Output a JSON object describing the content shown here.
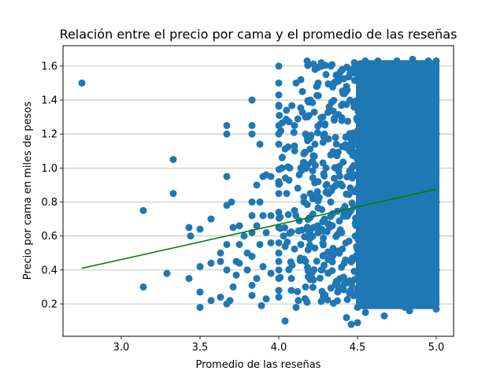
{
  "chart_data": {
    "type": "scatter",
    "title": "Relación entre el precio por cama y el promedio de las reseñas",
    "xlabel": "Promedio de las reseñas",
    "ylabel": "Precio por cama en miles de pesos",
    "xlim": [
      2.63,
      5.11
    ],
    "ylim": [
      0.01,
      1.72
    ],
    "xticks": [
      "3.0",
      "3.5",
      "4.0",
      "4.5",
      "5.0"
    ],
    "yticks": [
      "0.2",
      "0.4",
      "0.6",
      "0.8",
      "1.0",
      "1.2",
      "1.4",
      "1.6"
    ],
    "grid": "horizontal",
    "colors": {
      "points": "#1f77b4",
      "trendline": "#008000",
      "grid": "#b0b0b0"
    },
    "series": [
      {
        "values": [
          [
            2.75,
            1.5
          ],
          [
            3.14,
            0.75
          ],
          [
            3.14,
            0.3
          ],
          [
            3.29,
            0.38
          ],
          [
            3.33,
            1.05
          ],
          [
            3.33,
            0.85
          ],
          [
            3.43,
            0.65
          ],
          [
            3.43,
            0.35
          ],
          [
            3.44,
            0.6
          ],
          [
            3.5,
            0.64
          ],
          [
            3.5,
            0.42
          ],
          [
            3.5,
            0.27
          ],
          [
            3.5,
            0.18
          ],
          [
            3.57,
            0.7
          ],
          [
            3.57,
            0.44
          ],
          [
            3.57,
            0.22
          ],
          [
            3.63,
            0.5
          ],
          [
            3.63,
            0.45
          ],
          [
            3.63,
            0.24
          ],
          [
            3.67,
            1.25
          ],
          [
            3.67,
            1.2
          ],
          [
            3.67,
            0.95
          ],
          [
            3.67,
            0.78
          ],
          [
            3.67,
            0.55
          ],
          [
            3.67,
            0.4
          ],
          [
            3.67,
            0.2
          ],
          [
            3.69,
            0.22
          ],
          [
            3.7,
            0.8
          ],
          [
            3.71,
            0.65
          ],
          [
            3.71,
            0.3
          ],
          [
            3.73,
            0.45
          ],
          [
            3.73,
            0.37
          ],
          [
            3.75,
            0.66
          ],
          [
            3.75,
            0.55
          ],
          [
            3.75,
            0.44
          ],
          [
            3.78,
            0.6
          ],
          [
            3.8,
            0.5
          ],
          [
            3.8,
            0.4
          ],
          [
            3.83,
            1.4
          ],
          [
            3.83,
            1.25
          ],
          [
            3.83,
            1.2
          ],
          [
            3.83,
            0.8
          ],
          [
            3.83,
            0.72
          ],
          [
            3.83,
            0.62
          ],
          [
            3.83,
            0.48
          ],
          [
            3.83,
            0.31
          ],
          [
            3.83,
            0.25
          ],
          [
            3.86,
            0.9
          ],
          [
            3.86,
            0.66
          ],
          [
            3.86,
            0.35
          ],
          [
            3.88,
            1.14
          ],
          [
            3.88,
            0.8
          ],
          [
            3.88,
            0.55
          ],
          [
            3.89,
            0.19
          ],
          [
            3.9,
            0.95
          ],
          [
            3.9,
            0.72
          ],
          [
            3.9,
            0.42
          ],
          [
            3.92,
            0.96
          ],
          [
            3.92,
            0.62
          ],
          [
            3.92,
            0.23
          ],
          [
            3.95,
            0.95
          ],
          [
            3.95,
            0.72
          ],
          [
            3.95,
            0.56
          ],
          [
            3.95,
            0.38
          ],
          [
            4.0,
            1.6
          ],
          [
            4.0,
            1.5
          ],
          [
            4.0,
            1.43
          ],
          [
            4.0,
            1.37
          ],
          [
            4.0,
            1.25
          ],
          [
            4.0,
            1.2
          ],
          [
            4.0,
            1.14
          ],
          [
            4.0,
            0.92
          ],
          [
            4.0,
            0.85
          ],
          [
            4.0,
            0.74
          ],
          [
            4.0,
            0.65
          ],
          [
            4.0,
            0.56
          ],
          [
            4.0,
            0.5
          ],
          [
            4.0,
            0.45
          ],
          [
            4.0,
            0.4
          ],
          [
            4.0,
            0.35
          ],
          [
            4.0,
            0.28
          ],
          [
            4.0,
            0.24
          ],
          [
            4.02,
            1.0
          ],
          [
            4.03,
            0.6
          ],
          [
            4.04,
            0.1
          ],
          [
            4.05,
            0.85
          ],
          [
            4.07,
            1.0
          ],
          [
            4.08,
            0.35
          ],
          [
            4.08,
            0.28
          ],
          [
            4.1,
            1.25
          ],
          [
            4.1,
            1.13
          ],
          [
            4.1,
            0.75
          ],
          [
            4.11,
            1.5
          ],
          [
            4.11,
            0.18
          ],
          [
            4.13,
            0.96
          ],
          [
            4.13,
            0.69
          ],
          [
            4.14,
            1.52
          ],
          [
            4.14,
            1.0
          ],
          [
            4.14,
            0.55
          ],
          [
            4.15,
            1.45
          ],
          [
            4.17,
            1.3
          ],
          [
            4.17,
            1.2
          ],
          [
            4.17,
            0.45
          ],
          [
            4.17,
            0.3
          ],
          [
            4.18,
            1.63
          ],
          [
            4.18,
            0.21
          ],
          [
            4.2,
            1.4
          ],
          [
            4.2,
            0.85
          ],
          [
            4.22,
            0.65
          ],
          [
            4.23,
            1.58
          ],
          [
            4.23,
            1.14
          ],
          [
            4.25,
            1.5
          ],
          [
            4.25,
            0.92
          ],
          [
            4.27,
            1.62
          ],
          [
            4.27,
            0.4
          ],
          [
            4.28,
            1.3
          ],
          [
            4.29,
            1.2
          ],
          [
            4.29,
            0.7
          ],
          [
            4.3,
            1.55
          ],
          [
            4.3,
            1.0
          ],
          [
            4.32,
            1.36
          ],
          [
            4.33,
            1.6
          ],
          [
            4.33,
            0.8
          ],
          [
            4.35,
            0.5
          ],
          [
            4.36,
            1.18
          ],
          [
            4.38,
            1.54
          ],
          [
            4.38,
            0.98
          ],
          [
            4.4,
            1.28
          ],
          [
            4.4,
            0.62
          ],
          [
            4.43,
            1.48
          ],
          [
            4.43,
            0.12
          ],
          [
            4.45,
            1.1
          ],
          [
            4.45,
            0.33
          ],
          [
            4.46,
            0.08
          ],
          [
            4.48,
            1.62
          ],
          [
            4.5,
            1.55
          ],
          [
            4.5,
            1.38
          ],
          [
            4.5,
            1.22
          ],
          [
            4.5,
            1.05
          ],
          [
            4.5,
            0.88
          ],
          [
            4.5,
            0.7
          ],
          [
            4.5,
            0.52
          ],
          [
            4.5,
            0.35
          ],
          [
            4.5,
            0.18
          ],
          [
            4.5,
            0.09
          ],
          [
            4.53,
            0.22
          ],
          [
            4.55,
            1.63
          ],
          [
            4.55,
            0.15
          ],
          [
            4.6,
            0.3
          ],
          [
            4.63,
            1.63
          ],
          [
            4.67,
            0.13
          ],
          [
            4.7,
            0.2
          ],
          [
            4.75,
            1.63
          ],
          [
            4.8,
            0.18
          ],
          [
            4.83,
            0.16
          ],
          [
            4.85,
            1.64
          ],
          [
            4.9,
            0.19
          ],
          [
            4.95,
            1.63
          ],
          [
            5.0,
            1.63
          ],
          [
            5.0,
            1.2
          ],
          [
            5.0,
            0.8
          ],
          [
            5.0,
            0.4
          ],
          [
            5.0,
            0.17
          ]
        ]
      }
    ],
    "trendline": {
      "x": [
        2.75,
        5.0
      ],
      "y": [
        0.41,
        0.875
      ]
    }
  }
}
